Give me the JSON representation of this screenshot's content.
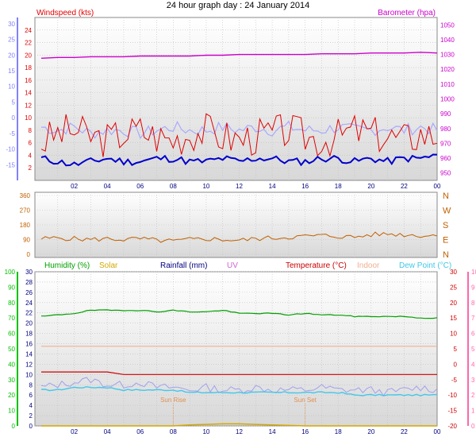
{
  "page_title": "24 hour graph day : 24 January 2014",
  "colors": {
    "windspeed": "#e00000",
    "windspeed_avg": "#0000cc",
    "windspeed_dirspeed": "#a8a8ff",
    "barometer": "#cc00cc",
    "wind_dir": "#c06000",
    "humidity": "#00a000",
    "solar": "#d4a800",
    "rainfall": "#000080",
    "uv": "#cc66cc",
    "temperature": "#cc0000",
    "indoor": "#f0b090",
    "dewpoint": "#40c8e8",
    "sun_event": "#e09050",
    "scale_blue": "#8080ff",
    "scale_green": "#00c000",
    "scale_pink": "#ff66aa",
    "scale_brown": "#c06000",
    "grid": "#bfbfbf",
    "time_axis": "#000080"
  },
  "chart_data": [
    {
      "type": "line",
      "panel": "wind-barometer",
      "x_ticks": [
        "02",
        "04",
        "06",
        "08",
        "10",
        "12",
        "14",
        "16",
        "18",
        "20",
        "22",
        "00"
      ],
      "left_axis": {
        "title": "Windspeed (kts)",
        "ticks": [
          "2",
          "4",
          "6",
          "8",
          "10",
          "12",
          "14",
          "16",
          "18",
          "20",
          "22",
          "24"
        ],
        "ylim": [
          0,
          26
        ]
      },
      "outer_left_axis": {
        "ticks": [
          "-15",
          "-10",
          "-5",
          "0",
          "5",
          "10",
          "15",
          "20",
          "25",
          "30"
        ],
        "ylim": [
          -20,
          32
        ]
      },
      "right_axis": {
        "title": "Barometer (hpa)",
        "ticks": [
          "950",
          "960",
          "970",
          "980",
          "990",
          "1000",
          "1010",
          "1020",
          "1030",
          "1040",
          "1050"
        ],
        "ylim": [
          945,
          1055
        ]
      },
      "series": [
        {
          "key": "gust",
          "values": [
            6,
            7.5,
            8,
            7,
            6.5,
            7.5,
            8,
            7,
            6.5,
            7.5,
            8,
            7,
            6.5,
            7,
            7.5,
            8,
            7,
            6.5,
            7,
            8,
            7.5,
            7,
            6.5,
            7.5,
            7
          ]
        },
        {
          "key": "average",
          "values": [
            3.5,
            3,
            2.5,
            3,
            3.5,
            3,
            3,
            3.5,
            3.5,
            3,
            3,
            3.5,
            3,
            3.5,
            3.5,
            3,
            3,
            3.5,
            3.5,
            3,
            3.5,
            3,
            3.5,
            3.5,
            4
          ]
        },
        {
          "key": "outer",
          "values": [
            -3,
            -4,
            -3,
            -5,
            -4,
            -4,
            -5,
            -4,
            -3,
            -4,
            -4,
            -3,
            -4,
            -3,
            -4,
            -3,
            -4,
            -4,
            -3,
            -4,
            -4,
            -3,
            -4,
            -3,
            -4
          ]
        },
        {
          "key": "barometer",
          "values": [
            1027.5,
            1028,
            1028,
            1028.5,
            1028.5,
            1028.5,
            1029,
            1029,
            1029,
            1029,
            1029.5,
            1029.5,
            1030,
            1030,
            1030,
            1030,
            1030,
            1030.5,
            1030.5,
            1030.5,
            1031,
            1031,
            1031,
            1031.5,
            1031
          ]
        }
      ]
    },
    {
      "type": "line",
      "panel": "wind-direction",
      "left_axis": {
        "ticks": [
          "0",
          "90",
          "180",
          "270",
          "360"
        ],
        "ylim": [
          0,
          360
        ]
      },
      "right_axis": {
        "ticks": [
          "N",
          "E",
          "S",
          "W",
          "N"
        ]
      },
      "series": [
        {
          "key": "direction",
          "values": [
            95,
            100,
            95,
            90,
            95,
            90,
            95,
            85,
            80,
            90,
            95,
            90,
            85,
            95,
            100,
            105,
            110,
            115,
            110,
            105,
            120,
            125,
            120,
            115,
            115
          ]
        }
      ]
    },
    {
      "type": "line",
      "panel": "temp-humidity",
      "x_ticks": [
        "02",
        "04",
        "06",
        "08",
        "10",
        "12",
        "14",
        "16",
        "18",
        "20",
        "22",
        "00"
      ],
      "axes": {
        "humidity_left": {
          "ticks": [
            "0",
            "10",
            "20",
            "30",
            "40",
            "50",
            "60",
            "70",
            "80",
            "90",
            "100"
          ],
          "ylim": [
            0,
            100
          ]
        },
        "rain_left": {
          "ticks": [
            "0",
            "2",
            "4",
            "6",
            "8",
            "10",
            "12",
            "14",
            "16",
            "18",
            "20",
            "22",
            "24",
            "26",
            "28",
            "30"
          ],
          "ylim": [
            0,
            30
          ]
        },
        "temperature_right": {
          "ticks": [
            "-20",
            "-15",
            "-10",
            "-5",
            "0",
            "5",
            "10",
            "15",
            "20",
            "25",
            "30"
          ],
          "ylim": [
            -20,
            30
          ]
        },
        "uv_right": {
          "ticks": [
            "0",
            "1",
            "2",
            "3",
            "4",
            "5",
            "6",
            "7",
            "8",
            "9",
            "10"
          ],
          "ylim": [
            0,
            10
          ]
        }
      },
      "legend": [
        "Humidity (%)",
        "Solar",
        "Rainfall (mm)",
        "UV",
        "Temperature (°C)",
        "Indoor",
        "Dew Point (°C)"
      ],
      "series": [
        {
          "key": "humidity",
          "values": [
            71,
            72,
            73,
            75,
            75,
            75,
            75,
            74,
            75,
            74,
            74,
            75,
            73,
            73,
            73,
            72,
            73,
            72,
            72,
            71,
            71,
            71,
            71,
            70,
            70
          ]
        },
        {
          "key": "indoor",
          "values": [
            15.5,
            15.5,
            15.5,
            15.5,
            15.5,
            15.5,
            15.5,
            15.5,
            15.5,
            15.5,
            15.5,
            15.5,
            15.5,
            15.5,
            15.5,
            15.5,
            15.5,
            15.5,
            15.5,
            15.5,
            15.5,
            15.5,
            15.5,
            15.5,
            15.5
          ]
        },
        {
          "key": "temperature",
          "values": [
            10.5,
            10.5,
            10.5,
            10.5,
            10.5,
            10,
            10,
            10,
            10,
            10,
            10,
            10,
            10,
            10,
            10,
            10,
            10,
            10,
            10,
            10,
            10,
            10,
            10,
            10,
            10
          ]
        },
        {
          "key": "dewpoint",
          "values": [
            7,
            7,
            7.5,
            7.5,
            7.5,
            7,
            7,
            7,
            7,
            6.5,
            6.5,
            6.5,
            6.5,
            6.5,
            6.5,
            6.5,
            6.5,
            6.5,
            6.5,
            6,
            6,
            6,
            6,
            6,
            6
          ]
        },
        {
          "key": "dewpoint_noise",
          "values": [
            7.5,
            8,
            8.5,
            9,
            8,
            8,
            8.5,
            7.5,
            7.5,
            7,
            7.5,
            7,
            7,
            7.5,
            7,
            7,
            7,
            7.5,
            7,
            7,
            7,
            6.5,
            7,
            7.5,
            7
          ]
        },
        {
          "key": "solar",
          "values": [
            0,
            0,
            0,
            0,
            0,
            0,
            0,
            0,
            0,
            0.2,
            0.3,
            0.4,
            0.4,
            0.3,
            0.2,
            0.1,
            0,
            0,
            0,
            0,
            0,
            0,
            0,
            0,
            0
          ]
        }
      ],
      "annotations": [
        {
          "text": "Sun Rise",
          "hour": 8
        },
        {
          "text": "Sun Set",
          "hour": 16
        }
      ]
    }
  ]
}
